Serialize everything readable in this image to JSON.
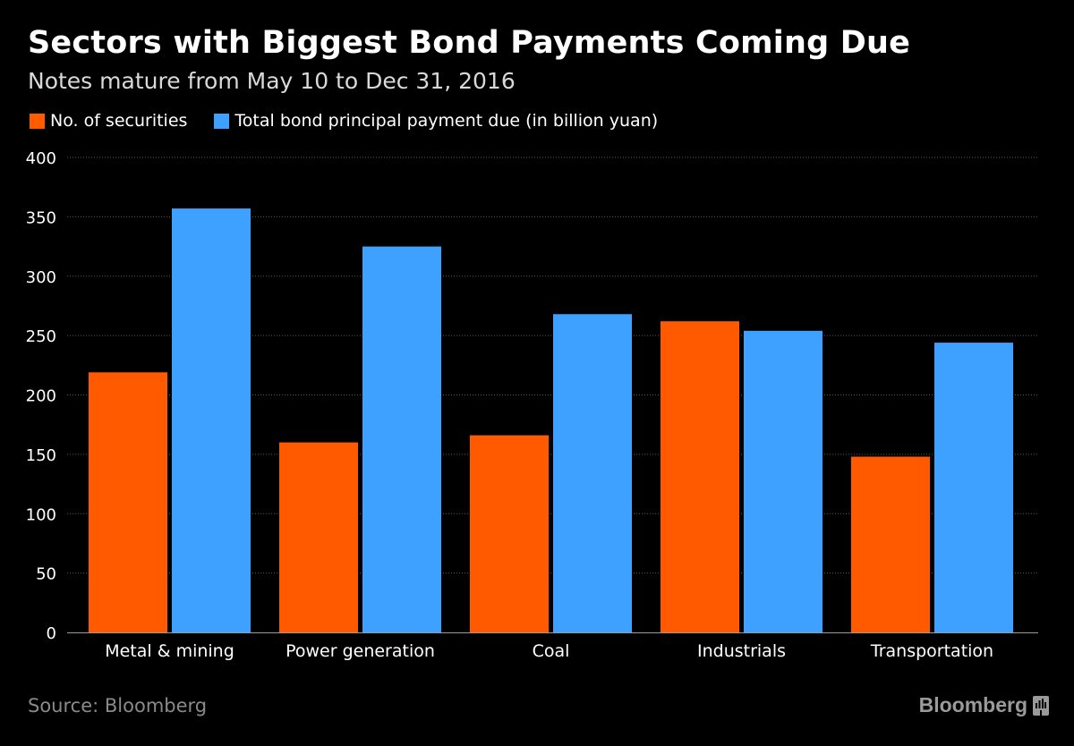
{
  "title": "Sectors with Biggest Bond Payments Coming Due",
  "subtitle": "Notes mature from May 10 to Dec 31, 2016",
  "source": "Source: Bloomberg",
  "brand": "Bloomberg",
  "colors": {
    "background": "#000000",
    "series_orange": "#ff5a00",
    "series_blue": "#3ea0ff",
    "grid": "#5a5a5a",
    "text": "#ffffff",
    "muted": "#8a8a8a"
  },
  "chart_data": {
    "type": "bar",
    "categories": [
      "Metal & mining",
      "Power generation",
      "Coal",
      "Industrials",
      "Transportation"
    ],
    "series": [
      {
        "name": "No. of securities",
        "color": "#ff5a00",
        "values": [
          219,
          160,
          166,
          262,
          148
        ]
      },
      {
        "name": "Total bond principal payment due (in billion yuan)",
        "color": "#3ea0ff",
        "values": [
          357,
          325,
          268,
          254,
          244
        ]
      }
    ],
    "title": "Sectors with Biggest Bond Payments Coming Due",
    "subtitle": "Notes mature from May 10 to Dec 31, 2016",
    "xlabel": "",
    "ylabel": "",
    "ylim": [
      0,
      400
    ],
    "yticks": [
      0,
      50,
      100,
      150,
      200,
      250,
      300,
      350,
      400
    ],
    "grid": true,
    "legend": "top-left"
  }
}
